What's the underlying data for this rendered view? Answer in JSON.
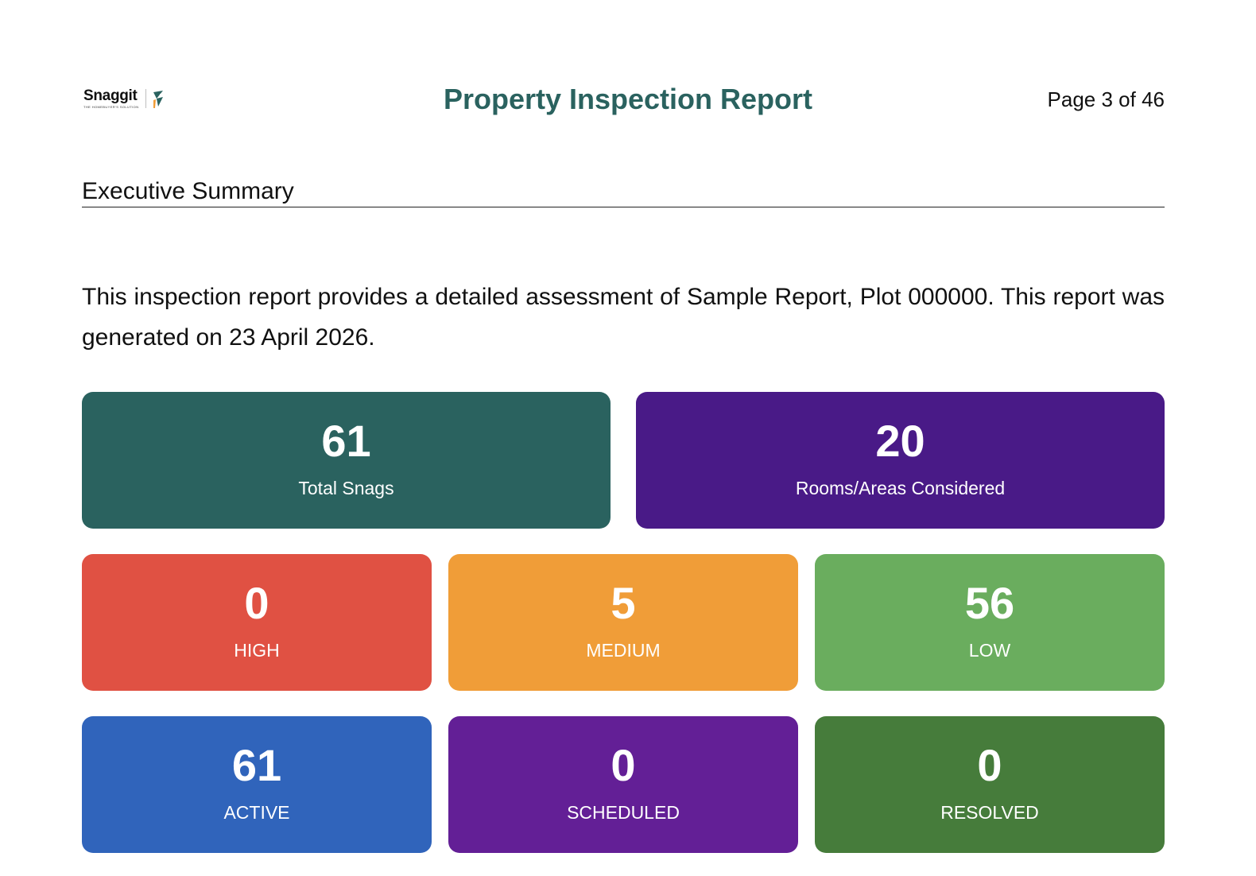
{
  "header": {
    "logo": {
      "wordmark": "Snaggit",
      "tagline": "THE HOMEBUYER'S SOLUTION"
    },
    "title": "Property Inspection Report",
    "page_indicator": "Page 3 of 46"
  },
  "section": {
    "heading": "Executive Summary",
    "intro": "This inspection report provides a detailed assessment of Sample Report, Plot 000000. This report was generated on 23 April 2026."
  },
  "summary_cards": {
    "total_snags": {
      "value": "61",
      "label": "Total Snags",
      "color": "#2a625f"
    },
    "rooms": {
      "value": "20",
      "label": "Rooms/Areas Considered",
      "color": "#491a87"
    },
    "high": {
      "value": "0",
      "label": "HIGH",
      "color": "#e05143"
    },
    "medium": {
      "value": "5",
      "label": "MEDIUM",
      "color": "#f09d38"
    },
    "low": {
      "value": "56",
      "label": "LOW",
      "color": "#6aad5e"
    },
    "active": {
      "value": "61",
      "label": "ACTIVE",
      "color": "#3064bb"
    },
    "scheduled": {
      "value": "0",
      "label": "SCHEDULED",
      "color": "#631f96"
    },
    "resolved": {
      "value": "0",
      "label": "RESOLVED",
      "color": "#467c3b"
    }
  }
}
